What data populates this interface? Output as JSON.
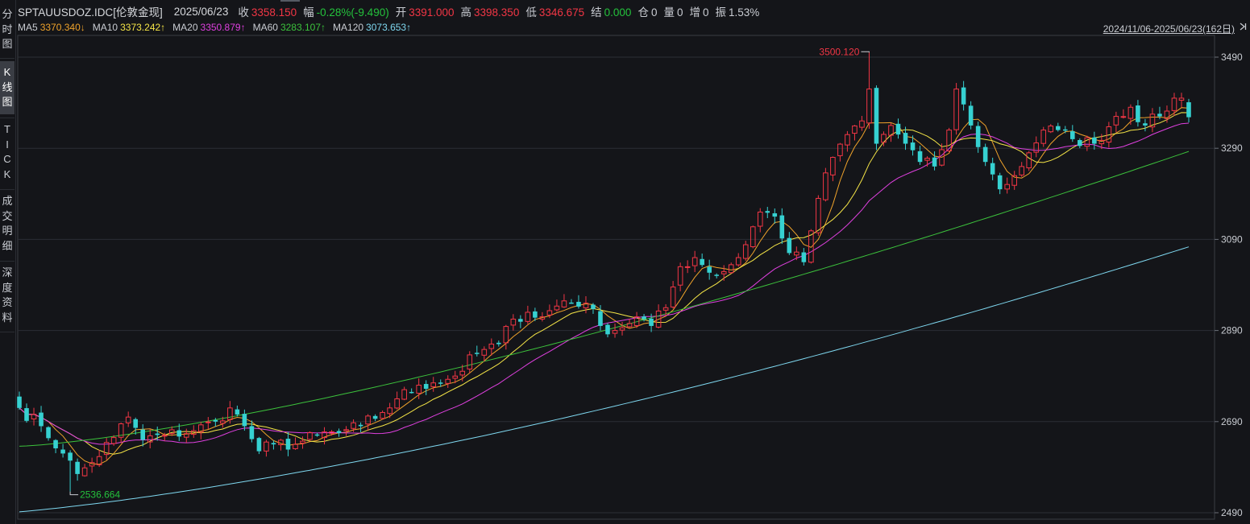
{
  "sidebar": {
    "tabs": [
      {
        "chars": [
          "分",
          "时",
          "图"
        ],
        "active": false
      },
      {
        "chars": [
          "K",
          "线",
          "图"
        ],
        "active": true
      },
      {
        "chars": [
          "T",
          "I",
          "C",
          "K"
        ],
        "active": false
      },
      {
        "chars": [
          "成",
          "交",
          "明",
          "细"
        ],
        "active": false
      },
      {
        "chars": [
          "深",
          "度",
          "资",
          "料"
        ],
        "active": false
      }
    ]
  },
  "header": {
    "symbol": "SPTAUUSDOZ.IDC[伦敦金现]",
    "date": "2025/06/23",
    "close_label": "收",
    "close": "3358.150",
    "change_label": "幅",
    "change": "-0.28%(-9.490)",
    "open_label": "开",
    "open": "3391.000",
    "high_label": "高",
    "high": "3398.350",
    "low_label": "低",
    "low": "3346.675",
    "settle_label": "结",
    "settle": "0.000",
    "position_label": "仓",
    "position": "0",
    "volume_label": "量",
    "volume": "0",
    "increase_label": "增",
    "increase": "0",
    "amplitude_label": "振",
    "amplitude": "1.53%"
  },
  "ma_legend": [
    {
      "name": "MA5",
      "value": "3370.340↓",
      "color": "#f0a32b"
    },
    {
      "name": "MA10",
      "value": "3373.242↑",
      "color": "#f5e547"
    },
    {
      "name": "MA20",
      "value": "3350.879↑",
      "color": "#e040e0"
    },
    {
      "name": "MA60",
      "value": "3283.107↑",
      "color": "#3cc23c"
    },
    {
      "name": "MA120",
      "value": "3073.653↑",
      "color": "#7fd8f0"
    }
  ],
  "range_label": "2024/11/06-2025/06/23(162日)",
  "chart_data": {
    "type": "candlestick",
    "y_ticks": [
      "3490",
      "3290",
      "3090",
      "2890",
      "2690",
      "2490"
    ],
    "ylim": [
      2490,
      3510
    ],
    "n_bars": 162,
    "up_color": "#f23645",
    "down_color": "#36d1d1",
    "high_marker": {
      "label": "3500.120",
      "value": 3500.12,
      "bar": 117
    },
    "low_marker": {
      "label": "2536.664",
      "value": 2536.664,
      "bar": 7
    },
    "anchor_closes": [
      [
        0,
        2720
      ],
      [
        3,
        2680
      ],
      [
        6,
        2620
      ],
      [
        8,
        2575
      ],
      [
        10,
        2600
      ],
      [
        13,
        2655
      ],
      [
        15,
        2700
      ],
      [
        17,
        2650
      ],
      [
        20,
        2660
      ],
      [
        24,
        2670
      ],
      [
        27,
        2690
      ],
      [
        29,
        2720
      ],
      [
        31,
        2680
      ],
      [
        33,
        2625
      ],
      [
        35,
        2640
      ],
      [
        38,
        2640
      ],
      [
        41,
        2660
      ],
      [
        44,
        2665
      ],
      [
        47,
        2680
      ],
      [
        50,
        2710
      ],
      [
        52,
        2740
      ],
      [
        55,
        2770
      ],
      [
        57,
        2775
      ],
      [
        60,
        2790
      ],
      [
        63,
        2840
      ],
      [
        66,
        2860
      ],
      [
        68,
        2915
      ],
      [
        70,
        2930
      ],
      [
        72,
        2920
      ],
      [
        75,
        2955
      ],
      [
        78,
        2950
      ],
      [
        80,
        2900
      ],
      [
        82,
        2890
      ],
      [
        85,
        2920
      ],
      [
        87,
        2900
      ],
      [
        89,
        2940
      ],
      [
        91,
        3030
      ],
      [
        93,
        3050
      ],
      [
        96,
        3010
      ],
      [
        99,
        3050
      ],
      [
        102,
        3150
      ],
      [
        104,
        3140
      ],
      [
        106,
        3060
      ],
      [
        108,
        3040
      ],
      [
        110,
        3180
      ],
      [
        112,
        3270
      ],
      [
        114,
        3320
      ],
      [
        116,
        3350
      ],
      [
        117,
        3420
      ],
      [
        118,
        3300
      ],
      [
        120,
        3340
      ],
      [
        122,
        3300
      ],
      [
        124,
        3260
      ],
      [
        126,
        3250
      ],
      [
        128,
        3330
      ],
      [
        129,
        3420
      ],
      [
        131,
        3340
      ],
      [
        133,
        3260
      ],
      [
        135,
        3200
      ],
      [
        137,
        3230
      ],
      [
        139,
        3280
      ],
      [
        141,
        3330
      ],
      [
        143,
        3330
      ],
      [
        145,
        3310
      ],
      [
        148,
        3300
      ],
      [
        151,
        3360
      ],
      [
        153,
        3380
      ],
      [
        155,
        3340
      ],
      [
        157,
        3360
      ],
      [
        159,
        3400
      ],
      [
        160,
        3400
      ],
      [
        161,
        3358.15
      ]
    ],
    "ma_last": {
      "MA5": 3370.34,
      "MA10": 3373.242,
      "MA20": 3350.879,
      "MA60": 3283.107,
      "MA120": 3073.653
    }
  }
}
